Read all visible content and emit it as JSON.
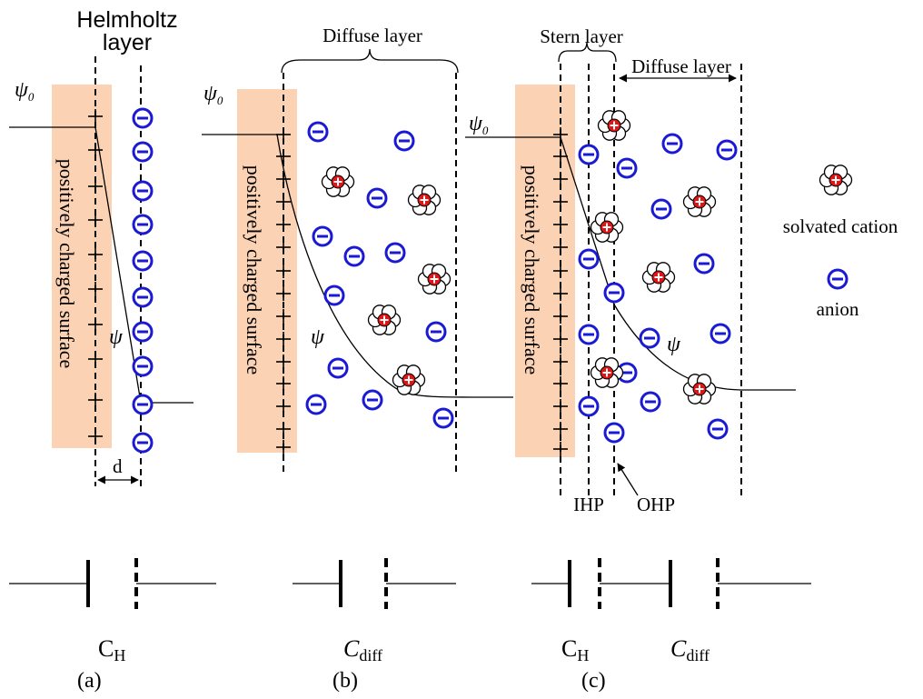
{
  "panels": [
    {
      "label": "(a)",
      "title": [
        "Helmholtz",
        "layer"
      ],
      "surface": "positively charged surface",
      "potential_0": {
        "main": "ψ",
        "sub": "0"
      },
      "potential": "ψ",
      "distance": "d",
      "capacitors": [
        {
          "main": "C",
          "sub": "H"
        }
      ]
    },
    {
      "label": "(b)",
      "title": "Diffuse layer",
      "surface": "positively charged surface",
      "potential_0": {
        "main": "ψ",
        "sub": "0"
      },
      "potential": "ψ",
      "capacitors": [
        {
          "main": "C",
          "sub": "diff"
        }
      ]
    },
    {
      "label": "(c)",
      "stern": "Stern layer",
      "diffuse": "Diffuse layer",
      "surface": "positively charged surface",
      "potential_0": {
        "main": "ψ",
        "sub": "0"
      },
      "potential": "ψ",
      "ihp": "IHP",
      "ohp": "OHP",
      "capacitors": [
        {
          "main": "C",
          "sub": "H"
        },
        {
          "main": "C",
          "sub": "diff"
        }
      ]
    }
  ],
  "legend": {
    "cation": "solvated cation",
    "anion": "anion"
  }
}
